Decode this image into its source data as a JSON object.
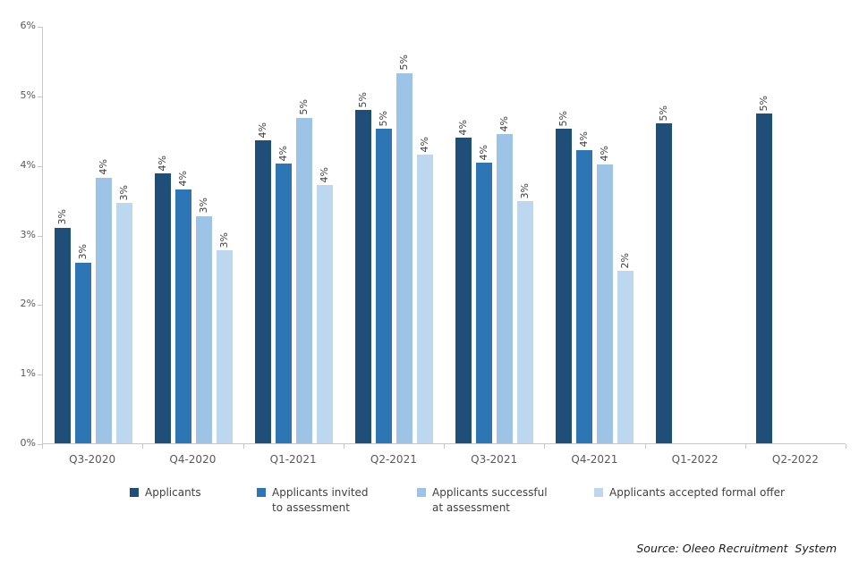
{
  "chart_data": {
    "type": "bar",
    "title": "",
    "xlabel": "",
    "ylabel": "",
    "ylim": [
      0,
      6
    ],
    "grid": false,
    "legend_position": "bottom",
    "y_ticks": [
      "0%",
      "1%",
      "2%",
      "3%",
      "4%",
      "5%",
      "6%"
    ],
    "categories": [
      "Q3-2020",
      "Q4-2020",
      "Q1-2021",
      "Q2-2021",
      "Q3-2021",
      "Q4-2021",
      "Q1-2022",
      "Q2-2022"
    ],
    "series": [
      {
        "name": "Applicants",
        "color": "#1F4E79",
        "values": [
          3.1,
          3.88,
          4.35,
          4.79,
          4.39,
          4.52,
          4.6,
          4.74
        ],
        "labels": [
          "3%",
          "4%",
          "4%",
          "5%",
          "4%",
          "5%",
          "5%",
          "5%"
        ]
      },
      {
        "name": "Applicants invited to assessment",
        "color": "#2E75B6",
        "values": [
          2.6,
          3.65,
          4.02,
          4.52,
          4.03,
          4.22,
          null,
          null
        ],
        "labels": [
          "3%",
          "4%",
          "4%",
          "5%",
          "4%",
          "4%",
          "",
          ""
        ]
      },
      {
        "name": "Applicants successful at assessment",
        "color": "#9DC3E6",
        "values": [
          3.82,
          3.27,
          4.68,
          5.32,
          4.44,
          4.01,
          null,
          null
        ],
        "labels": [
          "4%",
          "3%",
          "5%",
          "5%",
          "4%",
          "4%",
          "",
          ""
        ]
      },
      {
        "name": "Applicants accepted formal offer",
        "color": "#BDD7EE",
        "values": [
          3.45,
          2.77,
          3.71,
          4.15,
          3.48,
          2.48,
          null,
          null
        ],
        "labels": [
          "3%",
          "3%",
          "4%",
          "4%",
          "3%",
          "2%",
          "",
          ""
        ]
      }
    ]
  },
  "source": {
    "text": "Source: Oleeo Recruitment  System"
  }
}
